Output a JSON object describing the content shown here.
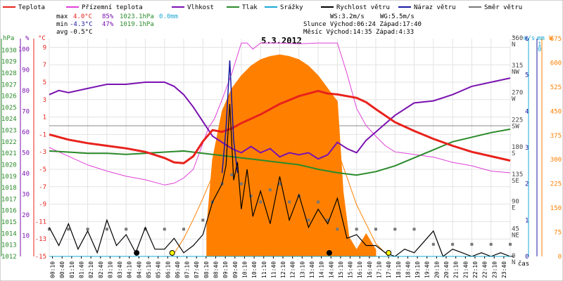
{
  "legend": [
    {
      "label": "Teplota",
      "color": "#e8221c"
    },
    {
      "label": "Přízemní teplota",
      "color": "#e040d8"
    },
    {
      "label": "Vlhkost",
      "color": "#7a12b0"
    },
    {
      "label": "Tlak",
      "color": "#2a8a2a"
    },
    {
      "label": "Srážky",
      "color": "#19a8d4"
    },
    {
      "label": "Rychlost větru",
      "color": "#000000"
    },
    {
      "label": "Náraz větru",
      "color": "#1818a0"
    },
    {
      "label": "Směr větru",
      "color": "#777777"
    }
  ],
  "stats": {
    "max_label": "max",
    "max_temp": "4.0°C",
    "max_hum": "85%",
    "max_pres": "1023.1hPa",
    "max_rain": "0.0mm",
    "min_label": "min",
    "min_temp": "-4.3°C",
    "min_hum": "47%",
    "min_pres": "1019.1hPa",
    "avg_label": "avg",
    "avg_temp": "-0.5°C",
    "ws": "WS:3.2m/s",
    "wg": "WG:5.5m/s",
    "sun": "Slunce Východ:06:24  Západ:17:40",
    "moon": "Měsíc  Východ:14:35  Západ:4:33"
  },
  "axis_units": {
    "pres": "hPa",
    "hum": "%",
    "temp": "°C",
    "dir": "°",
    "wind": "m/s",
    "rain": "mm",
    "sun": "W",
    "time": "čas"
  },
  "colors": {
    "temp": "#e8221c",
    "ground": "#e040d8",
    "hum": "#7a12b0",
    "pres": "#2a8a2a",
    "rain": "#19a8d4",
    "wind": "#000000",
    "gust": "#1818a0",
    "dir": "#777777",
    "solar": "#ff8000",
    "sun_curve": "#ff8000"
  },
  "icons": {
    "sunrise": "sun-icon",
    "moonset": "moon-icon",
    "moonrise": "moon-icon",
    "sunset": "sun-icon"
  },
  "chart_data": {
    "type": "line",
    "title": "5.3.2012",
    "xlabel": "čas",
    "x_tick_labels": [
      "00:10",
      "00:40",
      "01:10",
      "01:40",
      "02:10",
      "02:40",
      "03:10",
      "03:40",
      "04:10",
      "04:40",
      "05:10",
      "05:40",
      "06:10",
      "06:40",
      "07:10",
      "07:40",
      "08:10",
      "08:40",
      "09:10",
      "09:40",
      "10:10",
      "10:40",
      "11:10",
      "11:40",
      "12:10",
      "12:40",
      "13:10",
      "13:40",
      "14:10",
      "14:40",
      "15:10",
      "15:40",
      "16:10",
      "16:40",
      "17:10",
      "17:40",
      "18:10",
      "18:40",
      "19:10",
      "19:40",
      "20:10",
      "20:40",
      "21:10",
      "21:40",
      "22:10",
      "22:40",
      "23:10",
      "23:40"
    ],
    "x_hours": [
      0,
      1,
      2,
      3,
      4,
      5,
      6,
      7,
      8,
      9,
      10,
      11,
      12,
      13,
      14,
      15,
      16,
      17,
      18,
      19,
      20,
      21,
      22,
      23,
      24
    ],
    "axes": {
      "pressure_hPa": {
        "ticks": [
          1012,
          1013,
          1014,
          1015,
          1016,
          1017,
          1018,
          1019,
          1020,
          1021,
          1022,
          1023,
          1024,
          1025,
          1026,
          1027,
          1028,
          1029,
          1030
        ],
        "range": [
          1012,
          1031
        ]
      },
      "humidity_pct": {
        "ticks": [
          10,
          20,
          30,
          40,
          50,
          60,
          70,
          80,
          90,
          100
        ],
        "range": [
          0,
          105
        ]
      },
      "temperature_C": {
        "ticks": [
          9,
          7,
          5,
          3,
          1,
          -1,
          -3,
          -5,
          -7,
          -9,
          -11,
          -13,
          -15
        ],
        "range": [
          -15,
          10
        ]
      },
      "direction_deg": {
        "ticks": [
          "0 N",
          "45 NE",
          "90 E",
          "135 SE",
          "180 S",
          "225 SW",
          "270 W",
          "315 NW",
          "360 N"
        ],
        "range": [
          0,
          360
        ]
      },
      "wind_ms": {
        "ticks": [
          0,
          1,
          2,
          3,
          4,
          5,
          6
        ],
        "range": [
          0,
          6
        ]
      },
      "rain_mm": {
        "ticks": [
          0,
          1
        ],
        "range": [
          0,
          1
        ]
      },
      "solar_W": {
        "ticks": [
          0,
          75,
          150,
          225,
          300,
          375,
          450,
          525,
          600,
          675
        ],
        "range": [
          0,
          675
        ]
      }
    },
    "series": [
      {
        "name": "Teplota",
        "unit": "°C",
        "x": [
          0,
          1,
          2,
          3,
          4,
          5,
          6,
          6.5,
          7,
          7.5,
          8,
          8.5,
          9,
          9.5,
          10,
          11,
          12,
          13,
          14,
          14.5,
          15,
          16,
          16.5,
          17,
          18,
          19,
          20,
          21,
          22,
          23,
          24
        ],
        "y": [
          -1,
          -1.6,
          -2,
          -2.3,
          -2.6,
          -3,
          -3.7,
          -4.2,
          -4.3,
          -3.5,
          -1.8,
          -0.5,
          -0.7,
          -0.3,
          0.3,
          1.3,
          2.5,
          3.4,
          4.0,
          3.7,
          3.6,
          3.2,
          2.7,
          1.9,
          0.4,
          -0.6,
          -1.5,
          -2.3,
          -3,
          -3.5,
          -4
        ]
      },
      {
        "name": "Přízemní teplota",
        "unit": "°C",
        "x": [
          0,
          1,
          2,
          3,
          4,
          5,
          6,
          6.5,
          7,
          7.5,
          8,
          8.3,
          8.6,
          9,
          9.5,
          10,
          10.3,
          10.6,
          11,
          12,
          13,
          14,
          14.5,
          15,
          15.5,
          16,
          16.5,
          17,
          17.5,
          18,
          19,
          20,
          21,
          22,
          23,
          24
        ],
        "y": [
          -2.5,
          -3.5,
          -4.5,
          -5.2,
          -5.8,
          -6.2,
          -6.8,
          -6.6,
          -6,
          -5,
          -2,
          -0.2,
          0.8,
          3,
          6,
          9.5,
          9.5,
          8.8,
          9.5,
          9.5,
          9.4,
          9.5,
          9.5,
          9.5,
          6,
          2,
          0,
          -1.2,
          -2.3,
          -3,
          -3.3,
          -3.6,
          -4.2,
          -4.6,
          -5.2,
          -5.4
        ]
      },
      {
        "name": "Vlhkost",
        "unit": "%",
        "x": [
          0,
          0.5,
          1,
          2,
          3,
          4,
          5,
          6,
          6.5,
          7,
          7.5,
          8,
          8.5,
          9,
          9.5,
          10,
          10.5,
          11,
          11.5,
          12,
          12.5,
          13,
          13.5,
          14,
          14.5,
          15,
          15.5,
          16,
          16.5,
          17,
          17.5,
          18,
          19,
          20,
          21,
          22,
          23,
          24
        ],
        "y": [
          78,
          80,
          79,
          81,
          83,
          83,
          84,
          84,
          82,
          78,
          72,
          65,
          58,
          55,
          52,
          50,
          53,
          50,
          52,
          48,
          50,
          49,
          50,
          47,
          49,
          55,
          52,
          50,
          56,
          60,
          64,
          68,
          74,
          75,
          78,
          82,
          84,
          86
        ]
      },
      {
        "name": "Tlak",
        "unit": "hPa",
        "x": [
          0,
          1,
          2,
          3,
          4,
          5,
          6,
          7,
          8,
          9,
          10,
          11,
          12,
          13,
          14,
          15,
          16,
          17,
          18,
          19,
          20,
          21,
          22,
          23,
          24
        ],
        "y": [
          1021.2,
          1021.1,
          1021,
          1021,
          1020.9,
          1021,
          1021.1,
          1021.2,
          1021,
          1020.8,
          1020.6,
          1020.4,
          1020.2,
          1020,
          1019.6,
          1019.3,
          1019.1,
          1019.4,
          1019.9,
          1020.6,
          1021.3,
          1022,
          1022.4,
          1022.8,
          1023.1
        ]
      },
      {
        "name": "Rychlost větru",
        "unit": "m/s",
        "x": [
          0,
          0.5,
          1,
          1.5,
          2,
          2.5,
          3,
          3.5,
          4,
          4.5,
          5,
          5.5,
          6,
          6.5,
          7,
          7.5,
          8,
          8.5,
          9,
          9.2,
          9.4,
          9.6,
          9.8,
          10,
          10.3,
          10.6,
          11,
          11.5,
          12,
          12.5,
          13,
          13.5,
          14,
          14.5,
          15,
          15.5,
          16,
          16.5,
          17,
          17.5,
          18,
          18.5,
          19,
          19.5,
          20,
          20.5,
          21,
          21.5,
          22,
          22.5,
          23,
          23.5,
          24
        ],
        "y": [
          0.8,
          0.3,
          0.9,
          0.2,
          0.7,
          0.1,
          1,
          0.3,
          0.6,
          0.1,
          0.8,
          0.2,
          0.2,
          0.5,
          0.1,
          0.3,
          0.6,
          1.5,
          2,
          2.5,
          4.2,
          2.1,
          2.6,
          1.3,
          2.4,
          1.1,
          1.8,
          0.9,
          2.2,
          1,
          1.7,
          0.8,
          1.3,
          0.9,
          1.6,
          0.5,
          0.6,
          0.3,
          0.3,
          0.1,
          0,
          0.2,
          0.1,
          0.4,
          0.7,
          0,
          0.2,
          0.1,
          0,
          0.1,
          0,
          0.1,
          0
        ]
      },
      {
        "name": "Náraz větru",
        "unit": "m/s",
        "x": [
          9,
          9.2,
          9.4,
          9.6,
          9.8
        ],
        "y": [
          2.3,
          3.5,
          5.4,
          3.2,
          2.3
        ]
      },
      {
        "name": "Směr větru",
        "unit": "°",
        "x": [
          0,
          1,
          2,
          3,
          4,
          5,
          6,
          7,
          8,
          8.5,
          9,
          9.5,
          10,
          10.5,
          11,
          11.5,
          12,
          12.5,
          13,
          13.5,
          14,
          14.5,
          15,
          16,
          17,
          18,
          19,
          20,
          21,
          22,
          23,
          24
        ],
        "y": [
          45,
          45,
          45,
          45,
          45,
          45,
          45,
          45,
          60,
          90,
          120,
          135,
          120,
          100,
          90,
          110,
          120,
          90,
          100,
          60,
          90,
          60,
          45,
          45,
          45,
          45,
          45,
          20,
          20,
          20,
          20,
          20
        ]
      },
      {
        "name": "Srážky",
        "unit": "mm",
        "x": [
          0,
          24
        ],
        "y": [
          0,
          0
        ]
      },
      {
        "name": "Sluneční záření",
        "unit": "W",
        "x": [
          8.2,
          8.5,
          9,
          9.5,
          10,
          10.5,
          11,
          11.5,
          12,
          12.5,
          13,
          13.5,
          14,
          14.5,
          15,
          15.3,
          15.6,
          16,
          16.5,
          17
        ],
        "y": [
          90,
          300,
          450,
          520,
          560,
          590,
          610,
          620,
          625,
          620,
          610,
          590,
          560,
          520,
          480,
          200,
          60,
          20,
          70,
          20
        ]
      },
      {
        "name": "Teoretické záření",
        "unit": "W",
        "x": [
          6.4,
          7,
          7.5,
          8,
          8.5,
          9,
          10,
          11,
          12,
          13,
          14,
          15,
          16,
          17,
          17.67
        ],
        "y": [
          0,
          55,
          115,
          180,
          250,
          320,
          450,
          550,
          600,
          580,
          480,
          330,
          160,
          40,
          0
        ]
      }
    ],
    "grid": true
  }
}
